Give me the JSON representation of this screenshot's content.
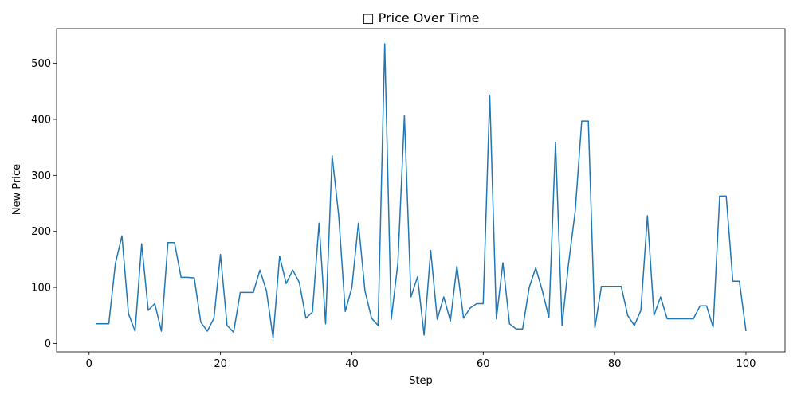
{
  "chart_data": {
    "type": "line",
    "title": "□ Price Over Time",
    "xlabel": "Step",
    "ylabel": "New Price",
    "xlim": [
      -4.95,
      105.95
    ],
    "ylim": [
      -15,
      562
    ],
    "x_ticks": [
      0,
      20,
      40,
      60,
      80,
      100
    ],
    "y_ticks": [
      0,
      100,
      200,
      300,
      400,
      500
    ],
    "grid": false,
    "line_color": "#1f77b4",
    "series": [
      {
        "x": [
          1,
          2,
          3,
          4,
          5,
          6,
          7,
          8,
          9,
          10,
          11,
          12,
          13,
          14,
          15,
          16,
          17,
          18,
          19,
          20,
          21,
          22,
          23,
          24,
          25,
          26,
          27,
          28,
          29,
          30,
          31,
          32,
          33,
          34,
          35,
          36,
          37,
          38,
          39,
          40,
          41,
          42,
          43,
          44,
          45,
          46,
          47,
          48,
          49,
          50,
          51,
          52,
          53,
          54,
          55,
          56,
          57,
          58,
          59,
          60,
          61,
          62,
          63,
          64,
          65,
          66,
          67,
          68,
          69,
          70,
          71,
          72,
          73,
          74,
          75,
          76,
          77,
          78,
          79,
          80,
          81,
          82,
          83,
          84,
          85,
          86,
          87,
          88,
          89,
          90,
          91,
          92,
          93,
          94,
          95,
          96,
          97,
          98,
          99,
          100
        ],
        "values": [
          35,
          35,
          35,
          143,
          192,
          53,
          22,
          178,
          59,
          71,
          22,
          180,
          180,
          118,
          118,
          117,
          38,
          22,
          45,
          159,
          32,
          20,
          91,
          91,
          91,
          131,
          94,
          10,
          156,
          107,
          131,
          109,
          45,
          56,
          215,
          35,
          335,
          228,
          57,
          100,
          215,
          94,
          45,
          32,
          535,
          43,
          143,
          407,
          83,
          119,
          15,
          166,
          43,
          83,
          40,
          138,
          45,
          63,
          71,
          71,
          443,
          44,
          144,
          35,
          26,
          26,
          100,
          135,
          94,
          46,
          359,
          32,
          143,
          236,
          397,
          397,
          28,
          102,
          102,
          102,
          102,
          50,
          32,
          59,
          228,
          50,
          83,
          44,
          44,
          44,
          44,
          44,
          67,
          67,
          29,
          263,
          263,
          111,
          111,
          22
        ]
      }
    ]
  }
}
